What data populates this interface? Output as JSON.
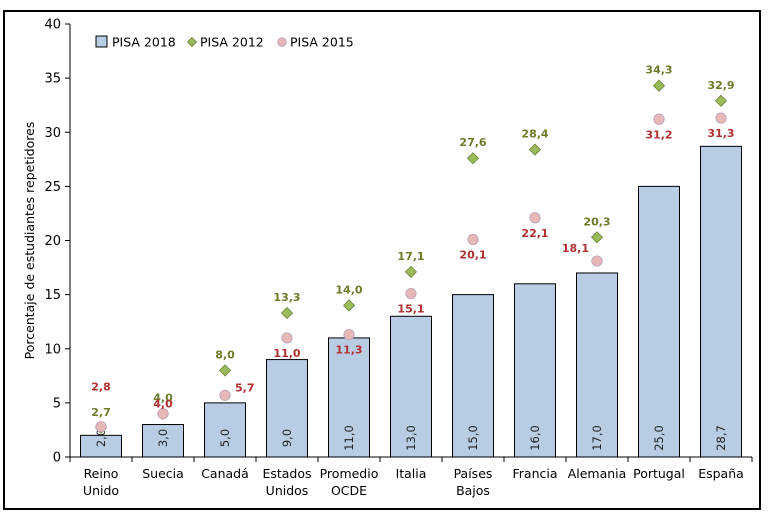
{
  "chart_data": {
    "type": "bar",
    "title": "",
    "xlabel": "",
    "ylabel": "Porcentaje de estudiantes repetidores",
    "ylim": [
      0,
      40
    ],
    "yticks": [
      0,
      5,
      10,
      15,
      20,
      25,
      30,
      35,
      40
    ],
    "grid": false,
    "legend_position": "top-left",
    "categories": [
      [
        "Reino",
        "Unido"
      ],
      [
        "Suecia"
      ],
      [
        "Canadá"
      ],
      [
        "Estados",
        "Unidos"
      ],
      [
        "Promedio",
        "OCDE"
      ],
      [
        "Italia"
      ],
      [
        "Países",
        "Bajos"
      ],
      [
        "Francia"
      ],
      [
        "Alemania"
      ],
      [
        "Portugal"
      ],
      [
        "España"
      ]
    ],
    "series": [
      {
        "name": "PISA 2018",
        "kind": "bar",
        "color": "#b8cce4",
        "values": [
          2.0,
          3.0,
          5.0,
          9.0,
          11.0,
          13.0,
          15.0,
          16.0,
          17.0,
          25.0,
          28.7
        ],
        "labels": [
          "2,0",
          "3,0",
          "5,0",
          "9,0",
          "11,0",
          "13,0",
          "15,0",
          "16,0",
          "17,0",
          "25,0",
          "28,7"
        ]
      },
      {
        "name": "PISA 2012",
        "kind": "marker-diamond",
        "color": "#9bbb59",
        "values": [
          2.7,
          4.0,
          8.0,
          13.3,
          14.0,
          17.1,
          27.6,
          28.4,
          20.3,
          34.3,
          32.9
        ],
        "labels": [
          "2,7",
          "4,0",
          "8,0",
          "13,3",
          "14,0",
          "17,1",
          "27,6",
          "28,4",
          "20,3",
          "34,3",
          "32,9"
        ]
      },
      {
        "name": "PISA 2015",
        "kind": "marker-circle",
        "color": "#e6b9b8",
        "values": [
          2.8,
          4.0,
          5.7,
          11.0,
          11.3,
          15.1,
          20.1,
          22.1,
          18.1,
          31.2,
          31.3
        ],
        "labels": [
          "2,8",
          "4,0",
          "5,7",
          "11,0",
          "11,3",
          "15,1",
          "20,1",
          "22,1",
          "18,1",
          "31,2",
          "31,3"
        ]
      }
    ]
  }
}
